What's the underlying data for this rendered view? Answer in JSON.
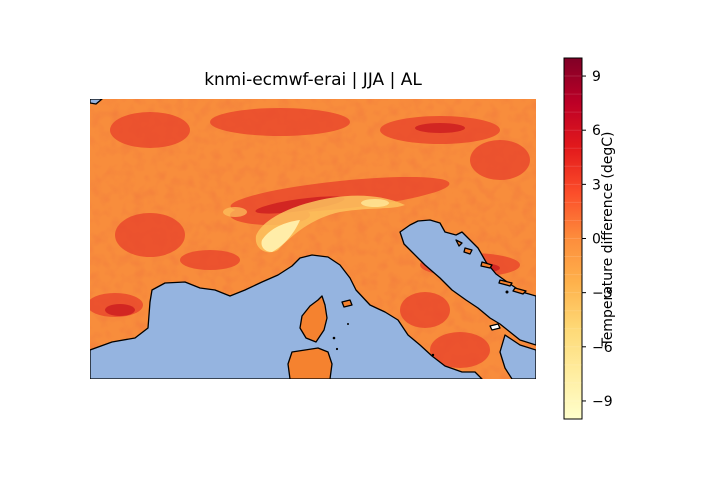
{
  "map": {
    "title": "knmi-ecmwf-erai | JJA | AL",
    "region": "European Alps, northern Italy, Corsica, Adriatic Sea",
    "colors": {
      "sea": "#95b4e0",
      "coastline": "#000000",
      "base_land": "#f88d3c"
    }
  },
  "colorbar": {
    "label": "Temperature difference (degC)",
    "colormap": "YlOrRd",
    "vmin": -10,
    "vmax": 10,
    "ticks": [
      9,
      6,
      3,
      0,
      -3,
      -6,
      -9
    ],
    "tick_labels": [
      "9",
      "6",
      "3",
      "0",
      "−3",
      "−6",
      "−9"
    ],
    "colors": [
      "#ffffcc",
      "#ffeda0",
      "#fed976",
      "#feb24c",
      "#fd8d3c",
      "#fc4e2a",
      "#e31a1c",
      "#bd0026",
      "#800026"
    ]
  }
}
